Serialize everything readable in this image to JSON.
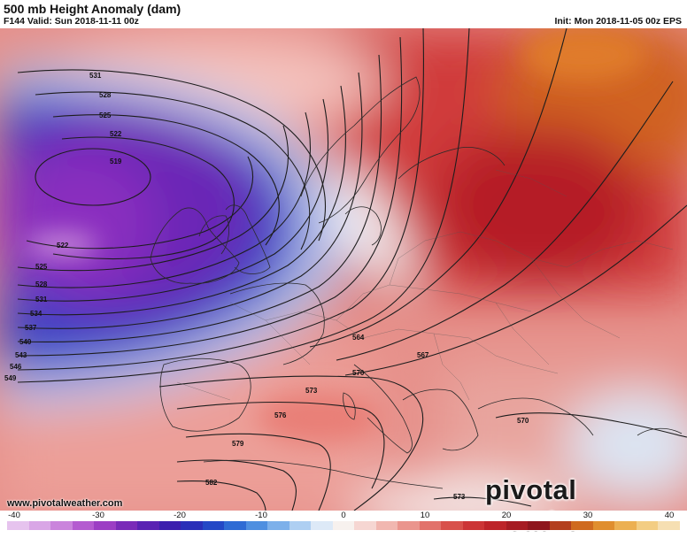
{
  "header": {
    "title": "500 mb Height Anomaly (dam)",
    "valid": "F144 Valid: Sun 2018-11-11 00z",
    "init": "Init: Mon 2018-11-05 00z EPS"
  },
  "footer": {
    "site": "www.pivotalweather.com",
    "brand": "pivotal weather"
  },
  "contours": {
    "labels": [
      "531",
      "528",
      "525",
      "522",
      "519",
      "522",
      "525",
      "528",
      "531",
      "534",
      "537",
      "540",
      "543",
      "546",
      "549",
      "564",
      "567",
      "570",
      "573",
      "576",
      "579",
      "582",
      "570",
      "573"
    ]
  },
  "colorbar": {
    "ticks": [
      "-40",
      "-30",
      "-20",
      "-10",
      "0",
      "10",
      "20",
      "30",
      "40"
    ],
    "colors": [
      "#e6c3ee",
      "#d9a6e6",
      "#ca84dc",
      "#b45bd0",
      "#9c3ec4",
      "#7a2bb8",
      "#5a22b3",
      "#3c1fae",
      "#2a2fb8",
      "#2448c6",
      "#2f6bd4",
      "#4f8fe0",
      "#7db0ea",
      "#aecff2",
      "#dde9f7",
      "#f7f1ee",
      "#f6d6d2",
      "#f1b7b0",
      "#ea958d",
      "#e2726b",
      "#d8514b",
      "#cc3536",
      "#bd2429",
      "#a61b22",
      "#8e151d",
      "#b33f1e",
      "#cf6a1f",
      "#e08e2e",
      "#ecb052",
      "#f3cd83",
      "#f6dfb2"
    ]
  }
}
